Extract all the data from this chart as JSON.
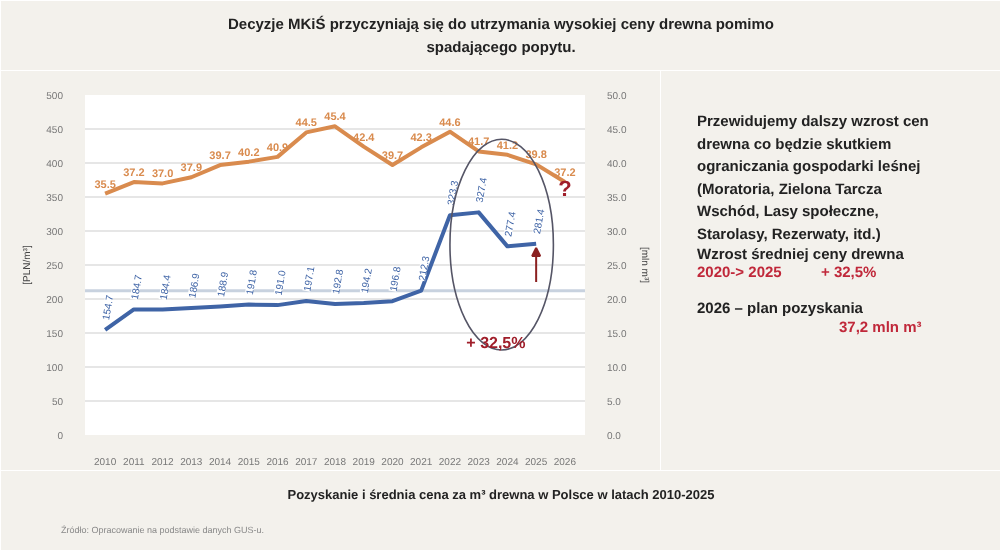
{
  "chart_data": {
    "type": "line",
    "title": "Decyzje MKiŚ przyczyniają się do utrzymania wysokiej ceny drewna pomimo spadającego popytu.",
    "categories": [
      "2010",
      "2011",
      "2012",
      "2013",
      "2014",
      "2015",
      "2016",
      "2017",
      "2018",
      "2019",
      "2020",
      "2021",
      "2022",
      "2023",
      "2024",
      "2025",
      "2026"
    ],
    "series": [
      {
        "color": "#3f64a6",
        "values": [
          154.7,
          184.7,
          184.4,
          186.9,
          188.9,
          191.8,
          191.0,
          197.1,
          192.8,
          194.2,
          196.8,
          212.3,
          323.3,
          327.4,
          277.4,
          281.4,
          null
        ],
        "value_labels": [
          "154.7",
          "184.7",
          "184.4",
          "186.9",
          "188.9",
          "191.8",
          "191.0",
          "197.1",
          "192.8",
          "194.2",
          "196.8",
          "212.3",
          "323.3",
          "327.4",
          "277.4",
          "281.4",
          null
        ]
      },
      {
        "color": "#d98b4e",
        "axis": "y2",
        "values": [
          35.5,
          37.2,
          37.0,
          37.9,
          39.7,
          40.2,
          40.9,
          44.5,
          45.4,
          42.4,
          39.7,
          42.3,
          44.6,
          41.7,
          41.2,
          39.8,
          37.2
        ],
        "value_labels": [
          "35.5",
          "37.2",
          "37.0",
          "37.9",
          "39.7",
          "40.2",
          "40.9",
          "44.5",
          "45.4",
          "42.4",
          "39.7",
          "42.3",
          "44.6",
          "41.7",
          "41.2",
          "39.8",
          "37.2"
        ]
      }
    ],
    "ylabel": "[PLN/m³]",
    "y2label": "[mln m³]",
    "ylim": [
      0,
      500
    ],
    "yticks": [
      0,
      50,
      100,
      150,
      200,
      250,
      300,
      350,
      400,
      450,
      500
    ],
    "y2lim": [
      0,
      50
    ],
    "y2ticks": [
      {
        "value": 0,
        "label": "0.0"
      },
      {
        "value": 5,
        "label": "5.0"
      },
      {
        "value": 10,
        "label": "10.0"
      },
      {
        "value": 15,
        "label": "15.0"
      },
      {
        "value": 20,
        "label": "20.0"
      },
      {
        "value": 25,
        "label": "25.0"
      },
      {
        "value": 30,
        "label": "30.0"
      },
      {
        "value": 35,
        "label": "35.0"
      },
      {
        "value": 40,
        "label": "40.0"
      },
      {
        "value": 45,
        "label": "45.0"
      },
      {
        "value": 50,
        "label": "50.0"
      }
    ],
    "ref_lines": [
      {
        "axis": "y",
        "value": 212.3,
        "color": "#c8d2df"
      }
    ],
    "grid": "y",
    "marker": "none",
    "line_style": "solid",
    "annotations": [
      "+ 32,5%",
      "?",
      "Przewidujemy dalszy wzrost cen drewna co będzie skutkiem ograniczania gospodarki leśnej (Moratoria, Zielona Tarcza Wschód, Lasy społeczne, Starolasy, Rezerwaty, itd.)",
      "Wzrost średniej ceny drewna",
      "2020-> 2025",
      "+ 32,5%",
      "2026 – plan pozyskania",
      "37,2 mln m³",
      "Pozyskanie i średnia cena za m³ drewna w Polsce w latach 2010-2025",
      "Źródło: Opracowanie na podstawie danych GUS-u."
    ]
  }
}
